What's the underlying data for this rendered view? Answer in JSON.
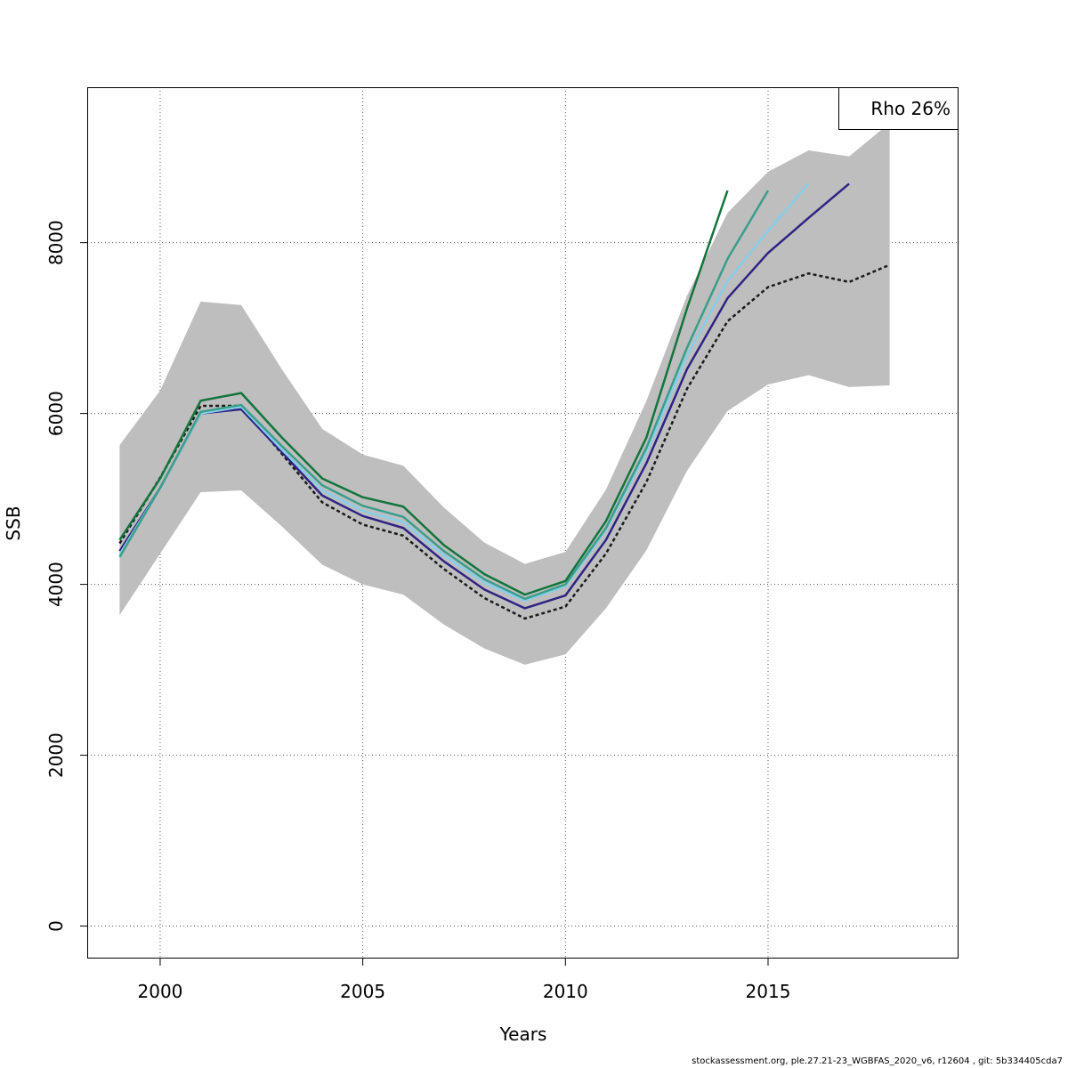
{
  "chart_data": {
    "type": "line",
    "xlabel": "Years",
    "ylabel": "SSB",
    "xlim": [
      1998.2,
      2019.7
    ],
    "ylim": [
      -380,
      9820
    ],
    "x_ticks": [
      2000,
      2005,
      2010,
      2015
    ],
    "y_ticks": [
      0,
      2000,
      4000,
      6000,
      8000
    ],
    "grid": true,
    "legend": {
      "text": "Rho 26%",
      "position": "top-right"
    },
    "band": {
      "x": [
        1999,
        2000,
        2001,
        2002,
        2003,
        2004,
        2005,
        2006,
        2007,
        2008,
        2009,
        2010,
        2011,
        2012,
        2013,
        2014,
        2015,
        2016,
        2017,
        2018
      ],
      "lower": [
        3640,
        4360,
        5080,
        5100,
        4680,
        4230,
        4000,
        3880,
        3530,
        3250,
        3060,
        3180,
        3720,
        4400,
        5330,
        6030,
        6340,
        6450,
        6310,
        6330
      ],
      "upper": [
        5630,
        6270,
        7310,
        7270,
        6520,
        5820,
        5520,
        5390,
        4900,
        4490,
        4240,
        4380,
        5110,
        6150,
        7380,
        8350,
        8830,
        9080,
        9010,
        9400
      ],
      "color": "#bebebe"
    },
    "series": [
      {
        "x": [
          1999,
          2000,
          2001,
          2002,
          2003,
          2004,
          2005,
          2006,
          2007,
          2008,
          2009,
          2010,
          2011,
          2012,
          2013,
          2014,
          2015,
          2016,
          2017,
          2018
        ],
        "values": [
          4480,
          5250,
          6090,
          6090,
          5530,
          4960,
          4700,
          4570,
          4180,
          3840,
          3600,
          3740,
          4360,
          5200,
          6290,
          7080,
          7480,
          7640,
          7540,
          7740
        ],
        "color": "#1a1a1a",
        "dashed": true
      },
      {
        "x": [
          1999,
          2000,
          2001,
          2002,
          2003,
          2004,
          2005,
          2006,
          2007,
          2008,
          2009,
          2010,
          2011,
          2012,
          2013,
          2014,
          2015,
          2016,
          2017
        ],
        "values": [
          4390,
          5130,
          6000,
          6050,
          5550,
          5040,
          4800,
          4660,
          4270,
          3940,
          3720,
          3870,
          4520,
          5420,
          6520,
          7350,
          7880,
          8290,
          8690
        ],
        "color": "#2e2383",
        "dashed": false
      },
      {
        "x": [
          1999,
          2000,
          2001,
          2002,
          2003,
          2004,
          2005,
          2006,
          2007,
          2008,
          2009,
          2010,
          2011,
          2012,
          2013,
          2014,
          2015,
          2016
        ],
        "values": [
          4350,
          5130,
          6000,
          6080,
          5580,
          5100,
          4860,
          4730,
          4340,
          4020,
          3810,
          3980,
          4640,
          5550,
          6680,
          7550,
          8140,
          8690
        ],
        "color": "#87ceeb",
        "dashed": false
      },
      {
        "x": [
          1999,
          2000,
          2001,
          2002,
          2003,
          2004,
          2005,
          2006,
          2007,
          2008,
          2009,
          2010,
          2011,
          2012,
          2013,
          2014,
          2015
        ],
        "values": [
          4320,
          5130,
          6020,
          6100,
          5620,
          5160,
          4920,
          4790,
          4390,
          4060,
          3830,
          4000,
          4660,
          5600,
          6770,
          7810,
          8610
        ],
        "color": "#3a9e8a",
        "dashed": false
      },
      {
        "x": [
          1999,
          2000,
          2001,
          2002,
          2003,
          2004,
          2005,
          2006,
          2007,
          2008,
          2009,
          2010,
          2011,
          2012,
          2013,
          2014
        ],
        "values": [
          4520,
          5240,
          6150,
          6240,
          5720,
          5240,
          5020,
          4910,
          4460,
          4120,
          3880,
          4040,
          4740,
          5720,
          7230,
          8610
        ],
        "color": "#13743c",
        "dashed": false
      }
    ]
  },
  "footer": "stockassessment.org, ple.27.21-23_WGBFAS_2020_v6, r12604 , git: 5b334405cda7"
}
